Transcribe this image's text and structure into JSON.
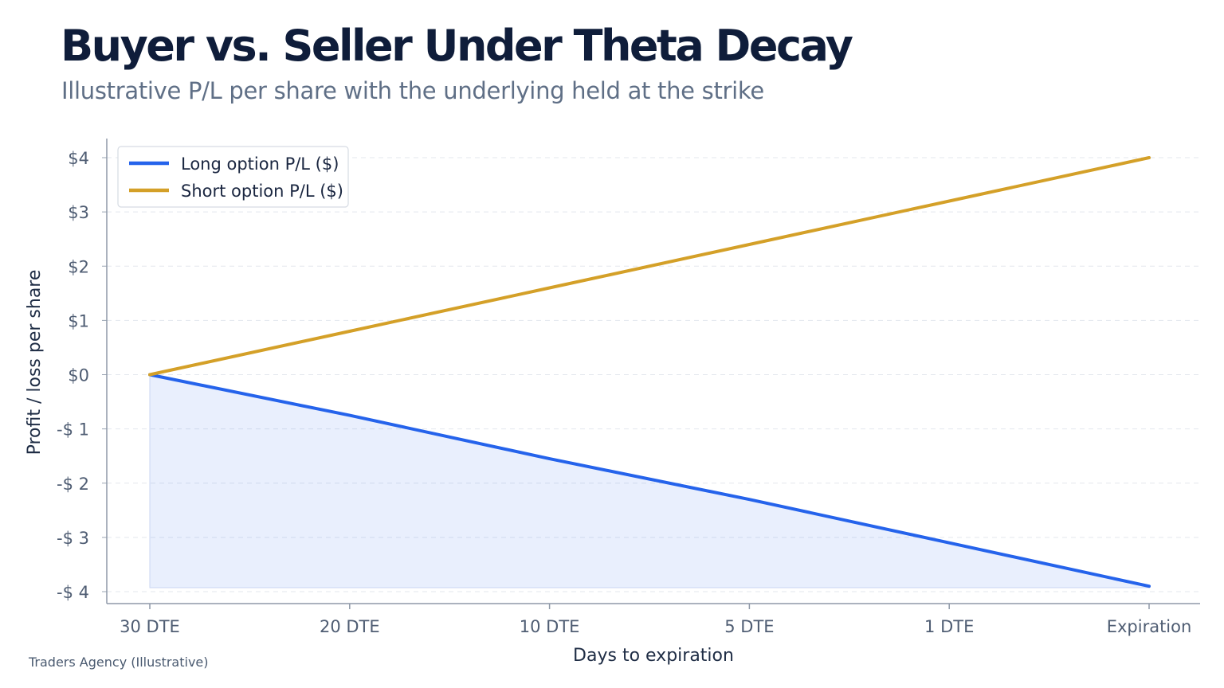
{
  "title": "Buyer vs. Seller Under Theta Decay",
  "subtitle": "Illustrative P/L per share with the underlying held at the strike",
  "footer": "Traders Agency (Illustrative)",
  "chart_data": {
    "type": "line",
    "x": [
      "30 DTE",
      "20 DTE",
      "10 DTE",
      "5 DTE",
      "1 DTE",
      "Expiration"
    ],
    "series": [
      {
        "name": "Long option P/L ($)",
        "color": "#2563eb",
        "values": [
          0,
          -0.75,
          -1.55,
          -2.3,
          -3.1,
          -3.9
        ],
        "fill_to_min": true
      },
      {
        "name": "Short option P/L ($)",
        "color": "#d4a028",
        "values": [
          0,
          0.8,
          1.6,
          2.4,
          3.2,
          4.0
        ]
      }
    ],
    "xlabel": "Days to expiration",
    "ylabel": "Profit / loss per share",
    "ylim": [
      -4,
      4
    ],
    "yticks": [
      4,
      3,
      2,
      1,
      0,
      -1,
      -2,
      -3,
      -4
    ],
    "ytick_labels": [
      "$4",
      "$3",
      "$2",
      "$1",
      "$0",
      "-$ 1",
      "-$ 2",
      "-$ 3",
      "-$ 4"
    ],
    "grid": true,
    "legend_position": "top-left"
  }
}
